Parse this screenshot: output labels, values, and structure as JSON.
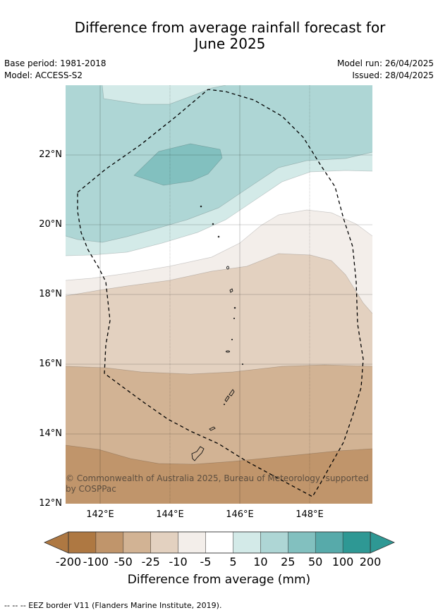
{
  "title_line1": "Difference from average rainfall forecast for",
  "title_line2": "June 2025",
  "meta_left": {
    "base_period": "Base period: 1981-2018",
    "model": "Model: ACCESS-S2"
  },
  "meta_right": {
    "model_run": "Model run: 26/04/2025",
    "issued": "Issued: 28/04/2025"
  },
  "map": {
    "lat_labels": [
      "22°N",
      "20°N",
      "18°N",
      "16°N",
      "14°N",
      "12°N"
    ],
    "lon_labels": [
      "142°E",
      "144°E",
      "146°E",
      "148°E"
    ],
    "copyright": "© Commonwealth of Australia 2025, Bureau of Meteorology, supported by COSPPac",
    "colors": {
      "wet_200_plus": "#2e9894",
      "wet_100": "#57aaaa",
      "wet_50": "#82c0bf",
      "wet_25": "#aed6d5",
      "wet_10": "#d3eae8",
      "neutral": "#ffffff",
      "dry_10": "#f3eeea",
      "dry_25": "#e3d1c0",
      "dry_50": "#d2b394",
      "dry_100": "#c0956b",
      "dry_200_plus": "#ae7842"
    }
  },
  "colorbar": {
    "ticks": [
      "-200",
      "-100",
      "-50",
      "-25",
      "-10",
      "-5",
      "5",
      "10",
      "25",
      "50",
      "100",
      "200"
    ],
    "colors": [
      "#ae7842",
      "#c0956b",
      "#d2b394",
      "#e3d1c0",
      "#f3eeea",
      "#ffffff",
      "#d3eae8",
      "#aed6d5",
      "#82c0bf",
      "#57aaaa",
      "#2e9894"
    ],
    "title": "Difference from average (mm)"
  },
  "footer": "-- -- -- EEZ border V11 (Flanders Marine Institute, 2019)."
}
